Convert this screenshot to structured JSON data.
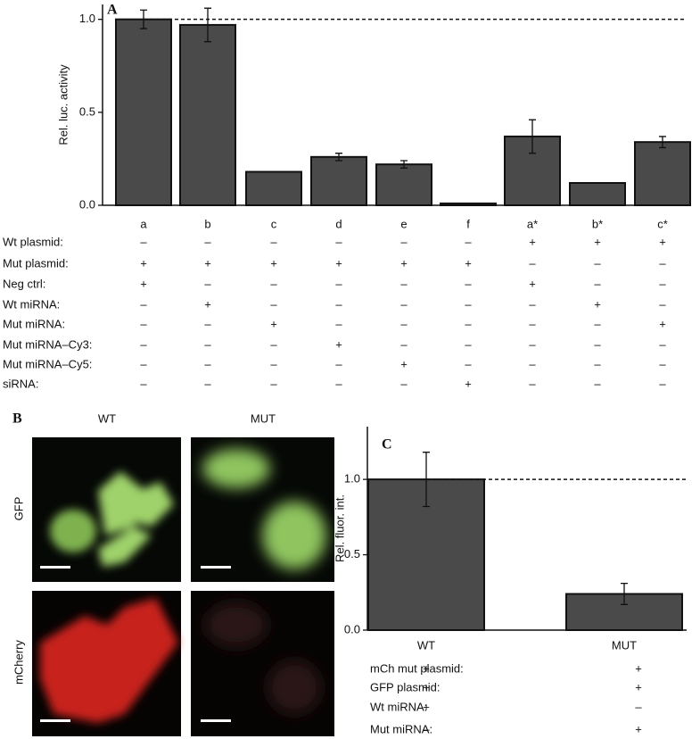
{
  "chart_data": [
    {
      "type": "bar",
      "panel_label": "A",
      "ylabel": "Rel. luc. activity",
      "categories": [
        "a",
        "b",
        "c",
        "d",
        "e",
        "f",
        "a*",
        "b*",
        "c*"
      ],
      "values": [
        1.0,
        0.97,
        0.18,
        0.26,
        0.22,
        0.01,
        0.37,
        0.12,
        0.34
      ],
      "errors": [
        0.05,
        0.09,
        null,
        0.02,
        0.02,
        null,
        0.09,
        null,
        0.03
      ],
      "color": "#4a4a4a",
      "reference_line": 1.0,
      "ylim": [
        0,
        1.08
      ],
      "yticks": [
        {
          "value": 0,
          "label": "0.0"
        },
        {
          "value": 0.5,
          "label": "0.5"
        },
        {
          "value": 1,
          "label": "1.0"
        }
      ],
      "conditions": [
        {
          "label": "Wt plasmid:",
          "values": [
            "–",
            "–",
            "–",
            "–",
            "–",
            "–",
            "+",
            "+",
            "+"
          ]
        },
        {
          "label": "Mut plasmid:",
          "values": [
            "+",
            "+",
            "+",
            "+",
            "+",
            "+",
            "–",
            "–",
            "–"
          ]
        },
        {
          "label": "Neg ctrl:",
          "values": [
            "+",
            "–",
            "–",
            "–",
            "–",
            "–",
            "+",
            "–",
            "–"
          ]
        },
        {
          "label": "Wt miRNA:",
          "values": [
            "–",
            "+",
            "–",
            "–",
            "–",
            "–",
            "–",
            "+",
            "–"
          ]
        },
        {
          "label": "Mut miRNA:",
          "values": [
            "–",
            "–",
            "+",
            "–",
            "–",
            "–",
            "–",
            "–",
            "+"
          ]
        },
        {
          "label": "Mut miRNA–Cy3:",
          "values": [
            "–",
            "–",
            "–",
            "+",
            "–",
            "–",
            "–",
            "–",
            "–"
          ]
        },
        {
          "label": "Mut miRNA–Cy5:",
          "values": [
            "–",
            "–",
            "–",
            "–",
            "+",
            "–",
            "–",
            "–",
            "–"
          ]
        },
        {
          "label": "siRNA:",
          "values": [
            "–",
            "–",
            "–",
            "–",
            "–",
            "+",
            "–",
            "–",
            "–"
          ]
        }
      ]
    },
    {
      "type": "bar",
      "panel_label": "C",
      "ylabel": "Rel. fluor. int.",
      "categories": [
        "WT",
        "MUT"
      ],
      "values": [
        1.0,
        0.24
      ],
      "errors": [
        0.18,
        0.07
      ],
      "color": "#4a4a4a",
      "reference_line": 1.0,
      "ylim": [
        0,
        1.35
      ],
      "yticks": [
        {
          "value": 0,
          "label": "0.0"
        },
        {
          "value": 0.5,
          "label": "0.5"
        },
        {
          "value": 1,
          "label": "1.0"
        }
      ],
      "conditions": [
        {
          "label": "mCh mut plasmid:",
          "values": [
            "+",
            "+"
          ]
        },
        {
          "label": "GFP plasmid:",
          "values": [
            "+",
            "+"
          ]
        },
        {
          "label": "Wt miRNA:",
          "values": [
            "+",
            "–"
          ]
        },
        {
          "label": "Mut miRNA:",
          "values": [
            "–",
            "+"
          ]
        }
      ]
    }
  ],
  "panel_b": {
    "panel_label": "B",
    "columns": [
      "WT",
      "MUT"
    ],
    "rows": [
      "GFP",
      "mCherry"
    ]
  }
}
